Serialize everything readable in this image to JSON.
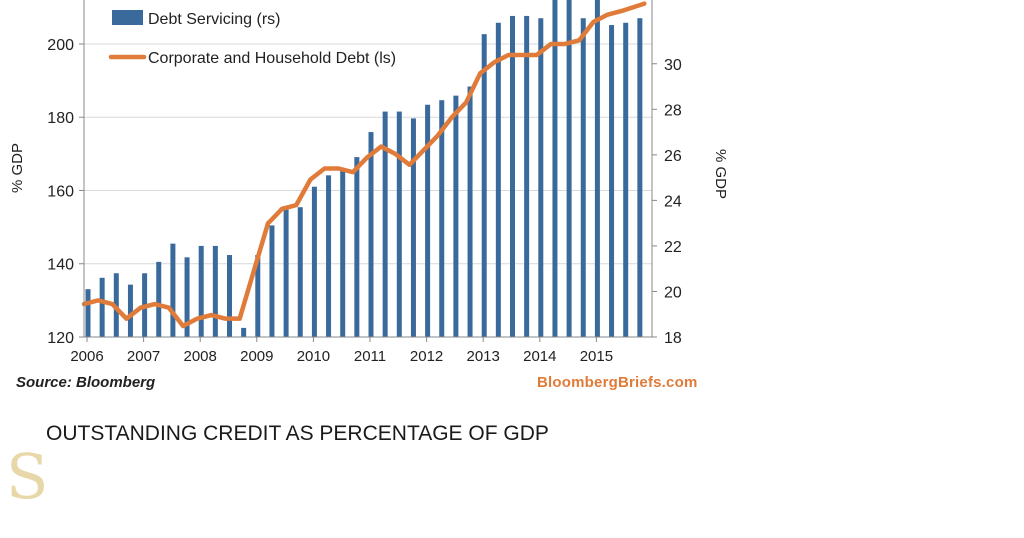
{
  "chart_data": {
    "type": "bar+line",
    "source": "Source: Bloomberg",
    "brand": "BloombergBriefs.com",
    "caption": "OUTSTANDING CREDIT AS PERCENTAGE OF GDP",
    "left_axis": {
      "label": "% GDP",
      "min": 120,
      "max": 212,
      "ticks": [
        120,
        140,
        160,
        180,
        200
      ]
    },
    "right_axis": {
      "label": "% GDP",
      "min": 18,
      "max": 32.8,
      "ticks": [
        18,
        20,
        22,
        24,
        26,
        28,
        30
      ]
    },
    "x_ticks": [
      "2006",
      "2007",
      "2008",
      "2009",
      "2010",
      "2011",
      "2012",
      "2013",
      "2014",
      "2015"
    ],
    "x_start": 2006,
    "x_end": 2016,
    "legend": {
      "bars": "Debt Servicing (rs)",
      "line": "Corporate and Household Debt (ls)"
    },
    "colors": {
      "bars": "#3a6a9c",
      "line": "#e07b39",
      "axis": "#888888"
    },
    "series": [
      {
        "name": "Debt Servicing (rs)",
        "axis": "right",
        "values": [
          20.1,
          20.6,
          20.8,
          20.3,
          20.8,
          21.3,
          22.1,
          21.5,
          22.0,
          22.0,
          21.6,
          18.4,
          21.6,
          22.9,
          23.6,
          23.7,
          24.6,
          25.1,
          25.3,
          25.9,
          27.0,
          27.9,
          27.9,
          27.6,
          28.2,
          28.4,
          28.6,
          29.0,
          31.3,
          31.8,
          32.1,
          32.1,
          32.0,
          32.8,
          32.8,
          32.0,
          32.8,
          31.7,
          31.8,
          32.0
        ]
      },
      {
        "name": "Corporate and Household Debt (ls)",
        "axis": "left",
        "x": [
          2006.0,
          2006.25,
          2006.5,
          2006.75,
          2007.0,
          2007.25,
          2007.5,
          2007.75,
          2008.0,
          2008.25,
          2008.5,
          2008.75,
          2009.0,
          2009.25,
          2009.5,
          2009.75,
          2010.0,
          2010.25,
          2010.5,
          2010.75,
          2011.0,
          2011.25,
          2011.5,
          2011.75,
          2012.0,
          2012.25,
          2012.5,
          2012.75,
          2013.0,
          2013.25,
          2013.5,
          2013.75,
          2014.0,
          2014.25,
          2014.5,
          2014.75,
          2015.0,
          2015.25,
          2015.5,
          2015.9
        ],
        "values": [
          129,
          130,
          129,
          125,
          128,
          129,
          128,
          123,
          125,
          126,
          125,
          125,
          138,
          151,
          155,
          156,
          163,
          166,
          166,
          165,
          169,
          172,
          170,
          167,
          171,
          175,
          180,
          184,
          192,
          195,
          197,
          197,
          197,
          200,
          200,
          201,
          206,
          208,
          209,
          211
        ]
      }
    ]
  }
}
